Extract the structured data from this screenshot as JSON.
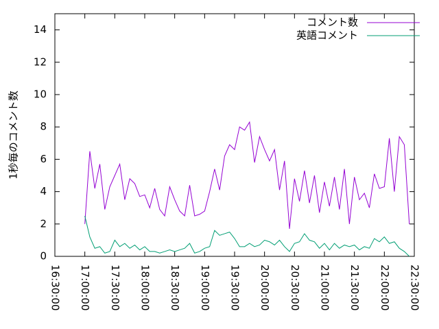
{
  "chart_data": {
    "type": "line",
    "y_label": "1秒毎のコメント数",
    "x": [
      "17:00:00",
      "17:05:00",
      "17:10:00",
      "17:15:00",
      "17:20:00",
      "17:25:00",
      "17:30:00",
      "17:35:00",
      "17:40:00",
      "17:45:00",
      "17:50:00",
      "17:55:00",
      "18:00:00",
      "18:05:00",
      "18:10:00",
      "18:15:00",
      "18:20:00",
      "18:25:00",
      "18:30:00",
      "18:35:00",
      "18:40:00",
      "18:45:00",
      "18:50:00",
      "18:55:00",
      "19:00:00",
      "19:05:00",
      "19:10:00",
      "19:15:00",
      "19:20:00",
      "19:25:00",
      "19:30:00",
      "19:35:00",
      "19:40:00",
      "19:45:00",
      "19:50:00",
      "19:55:00",
      "20:00:00",
      "20:05:00",
      "20:10:00",
      "20:15:00",
      "20:20:00",
      "20:25:00",
      "20:30:00",
      "20:35:00",
      "20:40:00",
      "20:45:00",
      "20:50:00",
      "20:55:00",
      "21:00:00",
      "21:05:00",
      "21:10:00",
      "21:15:00",
      "21:20:00",
      "21:25:00",
      "21:30:00",
      "21:35:00",
      "21:40:00",
      "21:45:00",
      "21:50:00",
      "21:55:00",
      "22:00:00",
      "22:05:00",
      "22:10:00",
      "22:15:00",
      "22:20:00",
      "22:25:00"
    ],
    "series": [
      {
        "name": "コメント数",
        "color": "#9400d3",
        "values": [
          2.0,
          6.5,
          4.2,
          5.7,
          2.9,
          4.3,
          5.0,
          5.7,
          3.5,
          4.8,
          4.5,
          3.7,
          3.8,
          3.0,
          4.2,
          2.9,
          2.5,
          4.3,
          3.5,
          2.8,
          2.5,
          4.4,
          2.5,
          2.6,
          2.8,
          4.0,
          5.4,
          4.1,
          6.2,
          6.9,
          6.6,
          8.0,
          7.8,
          8.3,
          5.8,
          7.4,
          6.6,
          5.9,
          6.6,
          4.1,
          5.9,
          1.7,
          4.8,
          3.4,
          5.3,
          3.3,
          5.0,
          2.7,
          4.6,
          3.1,
          4.9,
          2.9,
          5.4,
          2.0,
          4.9,
          3.5,
          3.9,
          3.0,
          5.1,
          4.2,
          4.3,
          7.3,
          4.0,
          7.4,
          6.9,
          2.0
        ]
      },
      {
        "name": "英語コメント",
        "color": "#009e73",
        "values": [
          2.5,
          1.2,
          0.5,
          0.6,
          0.2,
          0.3,
          1.0,
          0.6,
          0.8,
          0.5,
          0.7,
          0.4,
          0.6,
          0.3,
          0.3,
          0.2,
          0.3,
          0.4,
          0.3,
          0.4,
          0.5,
          0.8,
          0.2,
          0.3,
          0.5,
          0.6,
          1.6,
          1.3,
          1.4,
          1.5,
          1.1,
          0.6,
          0.6,
          0.8,
          0.6,
          0.7,
          1.0,
          0.9,
          0.7,
          1.0,
          0.6,
          0.3,
          0.8,
          0.9,
          1.4,
          1.0,
          0.9,
          0.5,
          0.8,
          0.4,
          0.8,
          0.5,
          0.7,
          0.6,
          0.7,
          0.4,
          0.6,
          0.5,
          1.1,
          0.9,
          1.2,
          0.8,
          0.9,
          0.5,
          0.3,
          0.0
        ]
      }
    ],
    "xlim": [
      "16:30:00",
      "22:30:00"
    ],
    "xticks": [
      "16:30:00",
      "17:00:00",
      "17:30:00",
      "18:00:00",
      "18:30:00",
      "19:00:00",
      "19:30:00",
      "20:00:00",
      "20:30:00",
      "21:00:00",
      "21:30:00",
      "22:00:00",
      "22:30:00"
    ],
    "ylim": [
      0,
      15
    ],
    "yticks": [
      0,
      2,
      4,
      6,
      8,
      10,
      12,
      14
    ],
    "legend": "top-right"
  }
}
